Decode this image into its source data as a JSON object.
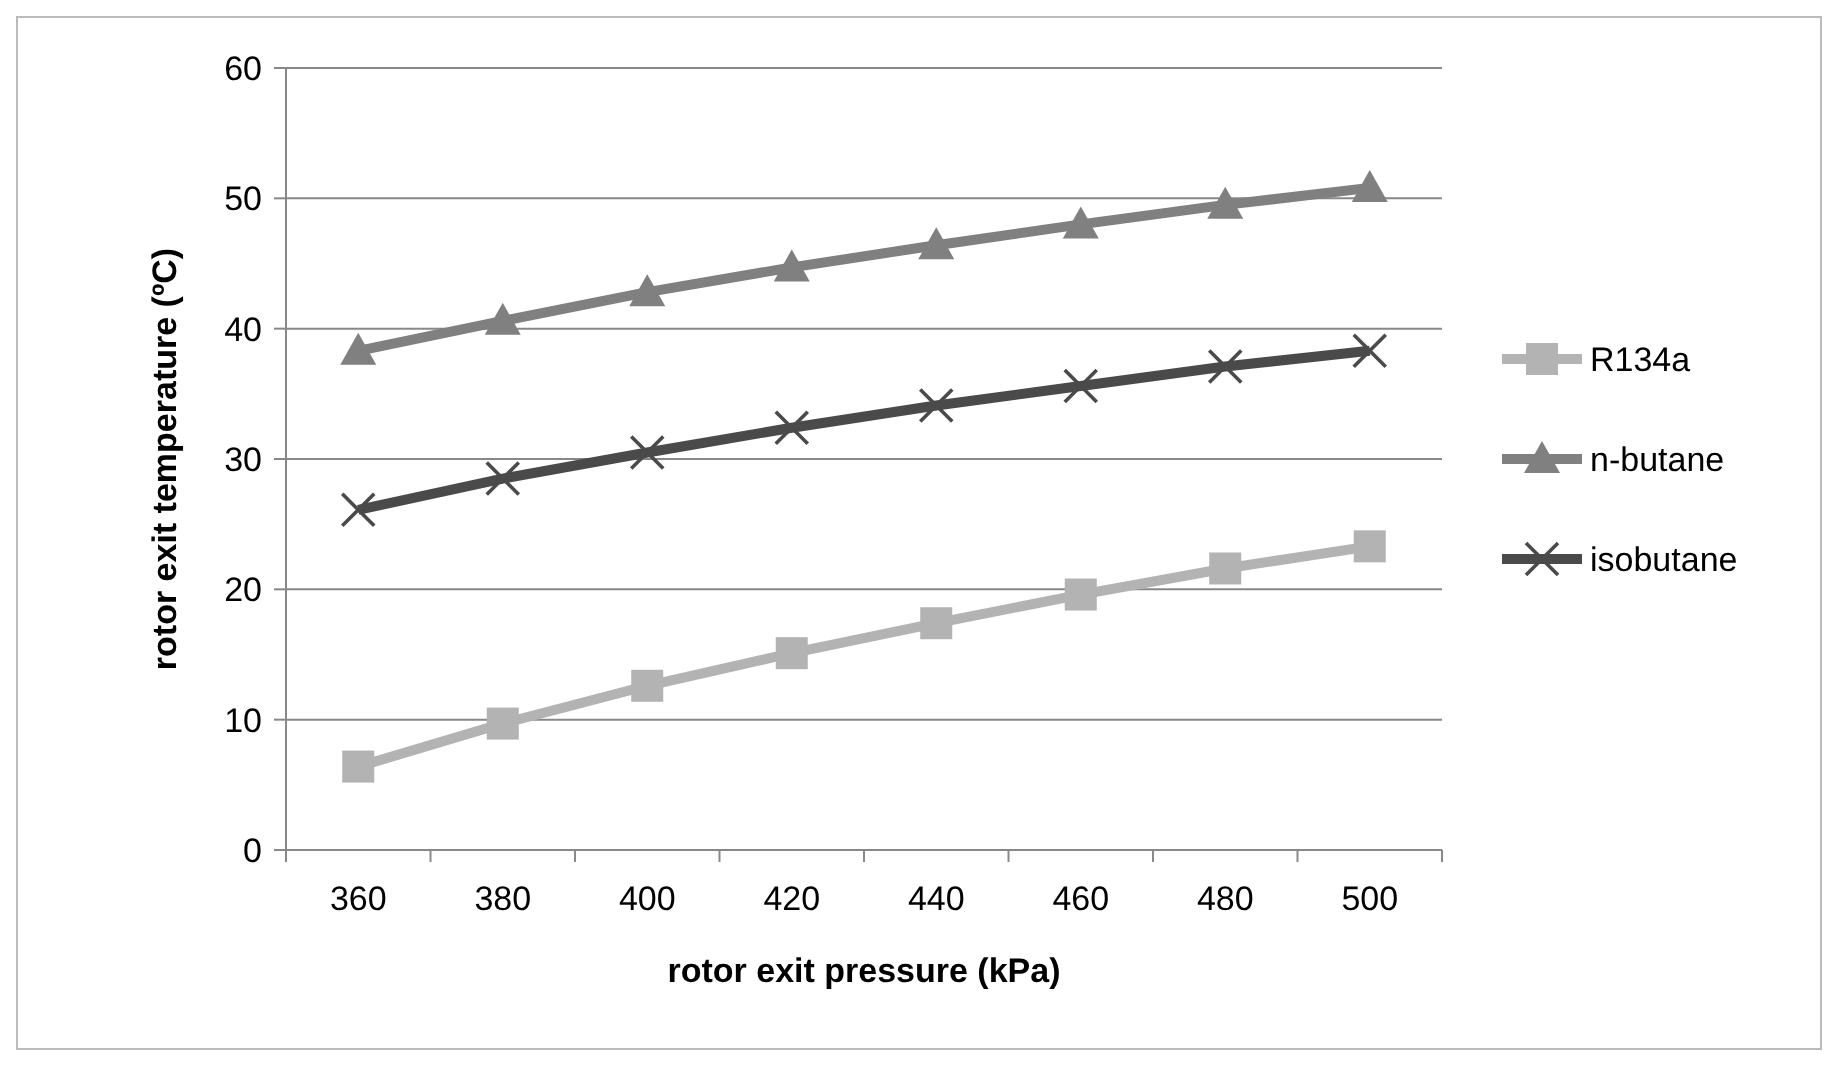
{
  "chart_data": {
    "type": "line",
    "xlabel": "rotor exit pressure (kPa)",
    "ylabel": "rotor exit temperature (ºC)",
    "categories": [
      "360",
      "380",
      "400",
      "420",
      "440",
      "460",
      "480",
      "500"
    ],
    "series": [
      {
        "name": "R134a",
        "color": "#b3b3b3",
        "marker": "square",
        "values": [
          6.4,
          9.7,
          12.6,
          15.1,
          17.4,
          19.6,
          21.6,
          23.3
        ]
      },
      {
        "name": "n-butane",
        "color": "#808080",
        "marker": "triangle",
        "values": [
          38.3,
          40.6,
          42.8,
          44.7,
          46.4,
          48.0,
          49.5,
          50.8
        ]
      },
      {
        "name": "isobutane",
        "color": "#4a4a4a",
        "marker": "cross",
        "values": [
          26.1,
          28.5,
          30.5,
          32.4,
          34.1,
          35.6,
          37.1,
          38.3
        ]
      }
    ],
    "ylim": [
      0,
      60
    ],
    "yticks": [
      0,
      10,
      20,
      30,
      40,
      50,
      60
    ],
    "grid": "y",
    "legend": "right"
  }
}
